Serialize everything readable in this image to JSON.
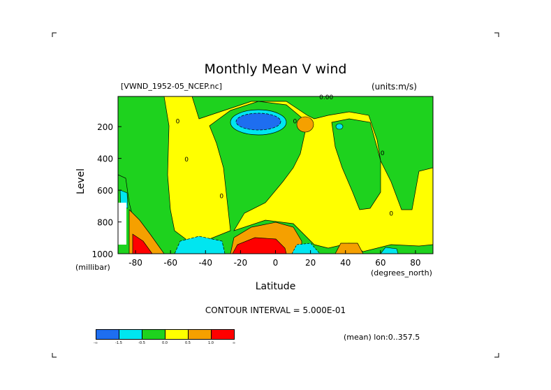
{
  "chart_data": {
    "type": "heatmap",
    "title": "Monthly Mean V wind",
    "file_label": "[VWND_1952-05_NCEP.nc]",
    "units_label": "(units:m/s)",
    "ylabel": "Level",
    "yunits": "(millibar)",
    "xlabel": "Latitude",
    "xunits": "(degrees_north)",
    "xlim": [
      -90,
      90
    ],
    "ylim": [
      1000,
      10
    ],
    "x_ticks": [
      -80,
      -60,
      -40,
      -20,
      0,
      20,
      40,
      60,
      80
    ],
    "x_tick_labels": [
      "-80",
      "-60",
      "-40",
      "-20",
      "0",
      "20",
      "40",
      "60",
      "80"
    ],
    "y_ticks": [
      200,
      400,
      600,
      800,
      1000
    ],
    "y_tick_labels": [
      "200",
      "400",
      "600",
      "800",
      "1000"
    ],
    "contour_interval": "CONTOUR INTERVAL = 5.000E-01",
    "mean_note": "(mean) lon:0..357.5",
    "colorbar": {
      "colors": [
        "#1e6ef0",
        "#00e6f0",
        "#1ed21e",
        "#ffff00",
        "#f5a000",
        "#ff0000"
      ],
      "labels": [
        "-∞",
        "-1.5",
        "-0.5",
        "0.0",
        "0.5",
        "1.0",
        "∞"
      ]
    },
    "contour_labels": [
      {
        "text": "0",
        "lat": -57,
        "p": 180
      },
      {
        "text": "0",
        "lat": -52,
        "p": 420
      },
      {
        "text": "0",
        "lat": -32,
        "p": 650
      },
      {
        "text": "0",
        "lat": 10,
        "p": 180
      },
      {
        "text": "0.00",
        "lat": 25,
        "p": 10
      },
      {
        "text": "0",
        "lat": 60,
        "p": 380
      },
      {
        "text": "0",
        "lat": 65,
        "p": 760
      }
    ],
    "regions": [
      {
        "name": "northern-yellow",
        "level": 0.25
      },
      {
        "name": "southern-green",
        "level": -0.25
      },
      {
        "name": "upper-blue-core",
        "level": -2.0
      },
      {
        "name": "upper-cyan-ring",
        "level": -1.0
      },
      {
        "name": "surface-red-core",
        "level": 1.5
      },
      {
        "name": "surface-orange-ring",
        "level": 0.75
      },
      {
        "name": "surface-cyan-south",
        "level": -1.0
      }
    ]
  }
}
